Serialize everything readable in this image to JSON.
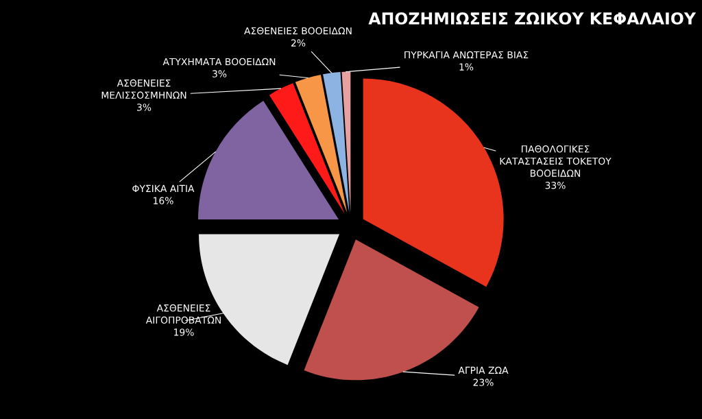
{
  "chart_data": {
    "type": "pie",
    "title": "ΑΠΟΖΗΜΙΩΣΕΙΣ ΖΩΙΚΟΥ ΚΕΦΑΛΑΙΟΥ",
    "categories": [
      "ΠΑΘΟΛΟΓΙΚΕΣ\nΚΑΤΑΣΤΑΣΕΙΣ ΤΟΚΕΤΟΥ\nΒΟΟΕΙΔΩΝ",
      "ΑΓΡΙΑ ΖΩΑ",
      "ΑΣΘΕΝΕΙΕΣ\nΑΙΓΟΠΡΟΒΑΤΩΝ",
      "ΦΥΣΙΚΑ ΑΙΤΙΑ",
      "ΑΣΘΕΝΕΙΕΣ\nΜΕΛΙΣΣΟΣΜΗΝΩΝ",
      "ΑΤΥΧΗΜΑΤΑ ΒΟΟΕΙΔΩΝ",
      "ΑΣΘΕΝΕΙΕΣ ΒΟΟΕΙΔΩΝ",
      "ΠΥΡΚΑΓΙΑ ΑΝΩΤΕΡΑΣ ΒΙΑΣ"
    ],
    "values": [
      33,
      23,
      19,
      16,
      3,
      3,
      2,
      1
    ],
    "value_labels": [
      "33%",
      "23%",
      "19%",
      "16%",
      "3%",
      "3%",
      "2%",
      "1%"
    ],
    "colors": [
      "#e8341c",
      "#c0504d",
      "#e6e6e6",
      "#8064a2",
      "#ff1a1a",
      "#f79646",
      "#8db3e2",
      "#e6a0a0"
    ],
    "legend": false
  }
}
